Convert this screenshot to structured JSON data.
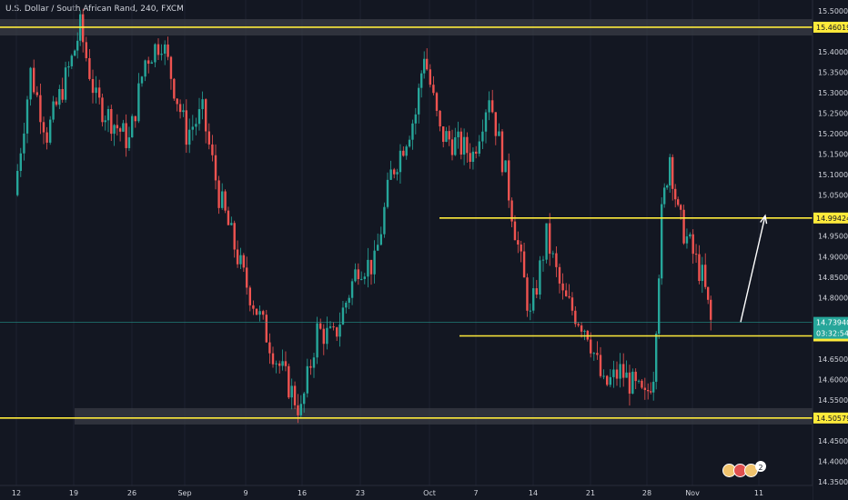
{
  "title": "U.S. Dollar / South African Rand, 240, FXCM",
  "badges": {
    "count_label": "2"
  },
  "colors": {
    "background": "#131722",
    "bull": "#26a69a",
    "bear": "#ef5350",
    "level_line": "#ffeb3b",
    "price_line": "#26a69a",
    "arrow": "#ffffff",
    "zone": "#3a3c45"
  },
  "chart_data": {
    "type": "candlestick",
    "title": "U.S. Dollar / South African Rand, 240, FXCM",
    "symbol": "USDZAR",
    "interval": "240",
    "source": "FXCM",
    "ylim": [
      14.35,
      15.52
    ],
    "y_ticks": [
      "15.50000",
      "15.40000",
      "15.35000",
      "15.30000",
      "15.25000",
      "15.20000",
      "15.15000",
      "15.10000",
      "15.05000",
      "14.95000",
      "14.90000",
      "14.85000",
      "14.80000",
      "14.65000",
      "14.60000",
      "14.55000",
      "14.45000",
      "14.40000",
      "14.35000"
    ],
    "x_ticks": [
      "12",
      "19",
      "26",
      "Sep",
      "9",
      "16",
      "23",
      "Oct",
      "7",
      "14",
      "21",
      "28",
      "Nov",
      "11"
    ],
    "horizontal_levels": [
      {
        "label": "15.46019",
        "value": 15.46019,
        "span": "full"
      },
      {
        "label": "14.99424",
        "value": 14.99424,
        "span": "right"
      },
      {
        "label": "14.70634",
        "value": 14.70634,
        "span": "right"
      },
      {
        "label": "14.50579",
        "value": 14.50579,
        "span": "full"
      }
    ],
    "current_price": {
      "label": "14.73940",
      "value": 14.7394,
      "countdown": "03:32:54"
    },
    "zones": [
      {
        "from": 15.44,
        "to": 15.48
      },
      {
        "from": 14.49,
        "to": 14.53
      }
    ],
    "arrow": {
      "from": {
        "date": "Nov 4",
        "price": 14.74
      },
      "to": {
        "date": "Nov 7",
        "price": 15.0
      }
    },
    "series": [
      {
        "date": "Aug 12",
        "close": 15.05
      },
      {
        "date": "Aug 14",
        "close": 15.35
      },
      {
        "date": "Aug 16",
        "close": 15.2
      },
      {
        "date": "Aug 19",
        "close": 15.38
      },
      {
        "date": "Aug 20",
        "close": 15.46
      },
      {
        "date": "Aug 22",
        "close": 15.28
      },
      {
        "date": "Aug 26",
        "close": 15.18
      },
      {
        "date": "Aug 28",
        "close": 15.38
      },
      {
        "date": "Aug 30",
        "close": 15.43
      },
      {
        "date": "Sep 2",
        "close": 15.2
      },
      {
        "date": "Sep 4",
        "close": 15.25
      },
      {
        "date": "Sep 6",
        "close": 15.05
      },
      {
        "date": "Sep 9",
        "close": 14.85
      },
      {
        "date": "Sep 11",
        "close": 14.75
      },
      {
        "date": "Sep 13",
        "close": 14.65
      },
      {
        "date": "Sep 16",
        "close": 14.52
      },
      {
        "date": "Sep 18",
        "close": 14.72
      },
      {
        "date": "Sep 20",
        "close": 14.7
      },
      {
        "date": "Sep 23",
        "close": 14.88
      },
      {
        "date": "Sep 25",
        "close": 14.88
      },
      {
        "date": "Sep 27",
        "close": 15.1
      },
      {
        "date": "Sep 30",
        "close": 15.25
      },
      {
        "date": "Oct 1",
        "close": 15.4
      },
      {
        "date": "Oct 3",
        "close": 15.2
      },
      {
        "date": "Oct 7",
        "close": 15.15
      },
      {
        "date": "Oct 9",
        "close": 15.3
      },
      {
        "date": "Oct 11",
        "close": 15.1
      },
      {
        "date": "Oct 14",
        "close": 14.75
      },
      {
        "date": "Oct 16",
        "close": 14.95
      },
      {
        "date": "Oct 18",
        "close": 14.8
      },
      {
        "date": "Oct 21",
        "close": 14.72
      },
      {
        "date": "Oct 23",
        "close": 14.58
      },
      {
        "date": "Oct 25",
        "close": 14.62
      },
      {
        "date": "Oct 28",
        "close": 14.55
      },
      {
        "date": "Oct 29",
        "close": 14.62
      },
      {
        "date": "Oct 30",
        "close": 15.0
      },
      {
        "date": "Oct 31",
        "close": 15.15
      },
      {
        "date": "Nov 1",
        "close": 15.0
      },
      {
        "date": "Nov 4",
        "close": 14.85
      },
      {
        "date": "Nov 5",
        "close": 14.74
      }
    ]
  }
}
